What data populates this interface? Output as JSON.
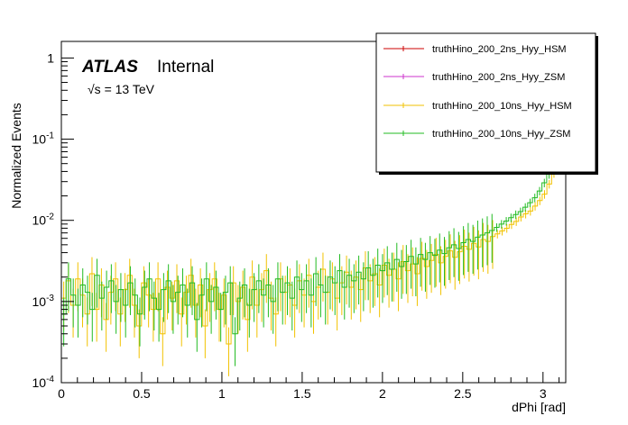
{
  "chart_data": {
    "type": "line",
    "xlabel": "dPhi [rad]",
    "ylabel": "Normalized Events",
    "xlim": [
      0,
      3.1416
    ],
    "ylim": [
      0.0001,
      1.6
    ],
    "log_y": true,
    "grid": false,
    "legend_position": "top-right",
    "x_ticks": [
      "0",
      "0.5",
      "1",
      "1.5",
      "2",
      "2.5",
      "3"
    ],
    "y_ticks": [
      {
        "base": "10",
        "exp": "-4"
      },
      {
        "base": "10",
        "exp": "-3"
      },
      {
        "base": "10",
        "exp": "-2"
      },
      {
        "base": "10",
        "exp": "-1"
      },
      {
        "base": "1",
        "exp": ""
      }
    ],
    "experiment_label": "ATLAS",
    "status_label": "Internal",
    "energy_label": "√s = 13 TeV",
    "series": [
      {
        "name": "truthHino_200_2ns_Hyy_HSM",
        "color": "#cc0000",
        "values": []
      },
      {
        "name": "truthHino_200_2ns_Hyy_ZSM",
        "color": "#cc33cc",
        "values": []
      },
      {
        "name": "truthHino_200_10ns_Hyy_HSM",
        "color": "#f2c200",
        "values": [
          0.0011,
          0.0018,
          0.0009,
          0.0019,
          0.0012,
          0.0007,
          0.0022,
          0.0008,
          0.0016,
          0.0006,
          0.0013,
          0.0019,
          0.0007,
          0.0014,
          0.0021,
          0.0009,
          0.0005,
          0.0017,
          0.0012,
          0.0008,
          0.0019,
          0.0004,
          0.0015,
          0.0011,
          0.0018,
          0.0007,
          0.0013,
          0.0021,
          0.0009,
          0.0016,
          0.0005,
          0.0014,
          0.0019,
          0.0008,
          0.0012,
          0.0003,
          0.0017,
          0.001,
          0.0015,
          0.0006,
          0.002,
          0.0009,
          0.0014,
          0.0024,
          0.0011,
          0.0007,
          0.0019,
          0.0013,
          0.0016,
          0.0009,
          0.0018,
          0.0012,
          0.0021,
          0.001,
          0.0015,
          0.0025,
          0.0013,
          0.0019,
          0.0011,
          0.0017,
          0.0023,
          0.0015,
          0.002,
          0.0014,
          0.0026,
          0.0018,
          0.0022,
          0.0016,
          0.0028,
          0.0021,
          0.0025,
          0.0019,
          0.0031,
          0.0024,
          0.0029,
          0.0022,
          0.0034,
          0.0027,
          0.0032,
          0.0038,
          0.003,
          0.0036,
          0.0042,
          0.0035,
          0.0041,
          0.0048,
          0.0044,
          0.0052,
          0.0047,
          0.0058,
          0.0055,
          0.0063,
          0.0068,
          0.0074,
          0.008,
          0.0089,
          0.0097,
          0.011,
          0.012,
          0.013,
          0.015,
          0.0175,
          0.021,
          0.028,
          0.038,
          0.055,
          0.078
        ]
      },
      {
        "name": "truthHino_200_10ns_Hyy_ZSM",
        "color": "#22bb22",
        "values": [
          0.0007,
          0.0019,
          0.0012,
          0.0009,
          0.0016,
          0.0013,
          0.0008,
          0.0021,
          0.0011,
          0.0015,
          0.0018,
          0.001,
          0.0014,
          0.0009,
          0.0017,
          0.0012,
          0.0007,
          0.0015,
          0.0019,
          0.0011,
          0.0008,
          0.0014,
          0.0018,
          0.001,
          0.0013,
          0.0016,
          0.0009,
          0.0017,
          0.0006,
          0.0012,
          0.0019,
          0.001,
          0.0015,
          0.0008,
          0.0013,
          0.0017,
          0.0004,
          0.0011,
          0.0016,
          0.0009,
          0.0014,
          0.0018,
          0.0012,
          0.0016,
          0.001,
          0.0019,
          0.0013,
          0.0017,
          0.0011,
          0.002,
          0.0014,
          0.0018,
          0.0012,
          0.0022,
          0.0016,
          0.0013,
          0.002,
          0.0017,
          0.0024,
          0.0015,
          0.0021,
          0.0018,
          0.0023,
          0.0019,
          0.0026,
          0.0021,
          0.0028,
          0.0024,
          0.003,
          0.0025,
          0.0033,
          0.0027,
          0.0031,
          0.0036,
          0.0029,
          0.0038,
          0.0033,
          0.004,
          0.0037,
          0.0043,
          0.0039,
          0.0046,
          0.005,
          0.0045,
          0.0053,
          0.0058,
          0.0055,
          0.0062,
          0.0066,
          0.007,
          0.0075,
          0.0082,
          0.009,
          0.0098,
          0.0108,
          0.0118,
          0.0128,
          0.0145,
          0.0165,
          0.019,
          0.023,
          0.029,
          0.037,
          0.048,
          0.064,
          0.082
        ]
      }
    ]
  }
}
